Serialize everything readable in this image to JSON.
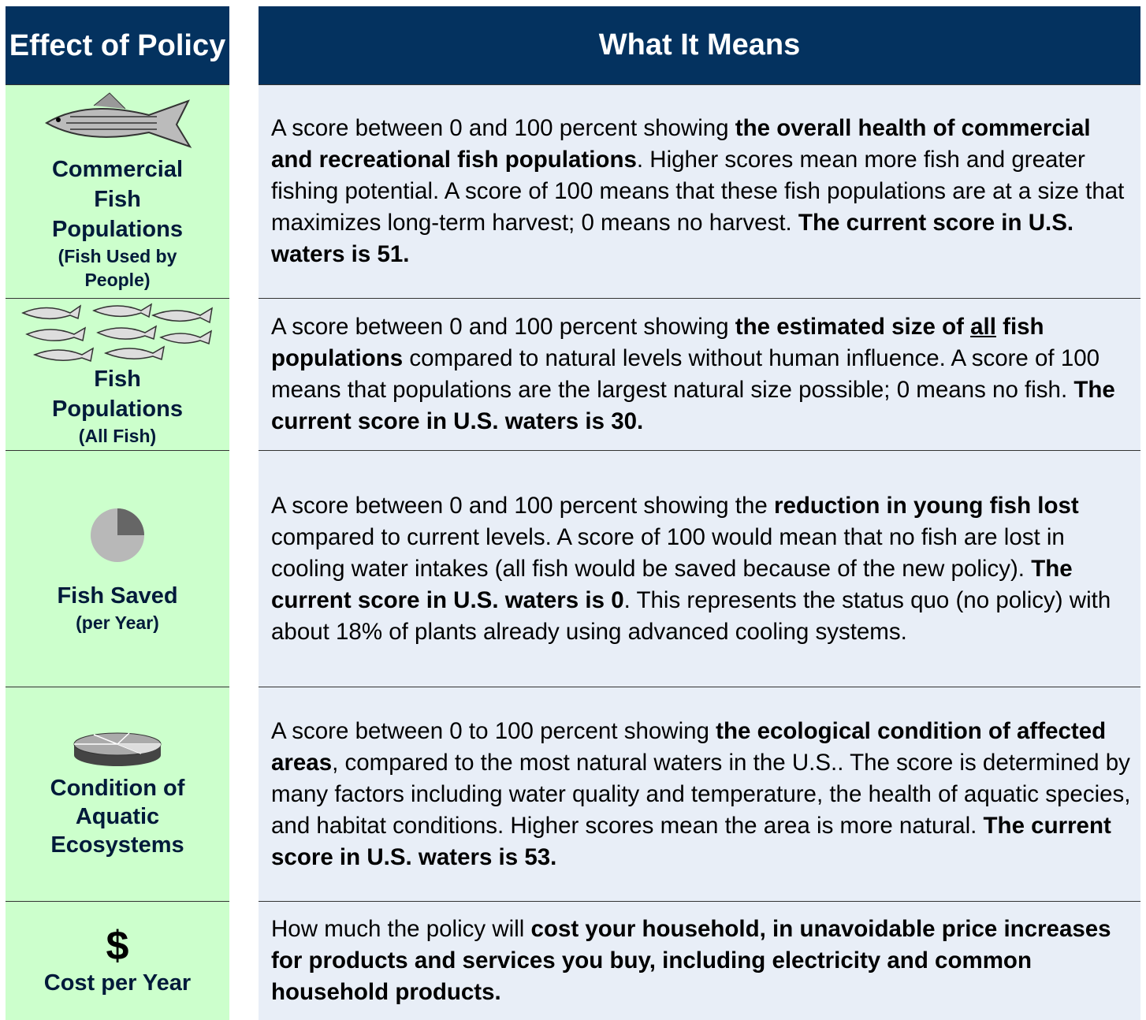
{
  "header": {
    "effect": "Effect of Policy",
    "meaning": "What It Means"
  },
  "rows": [
    {
      "label": "Commercial Fish Populations",
      "sublabel": "(Fish Used by People)",
      "description": [
        "A score between 0 and 100 percent showing ",
        "the overall health of commercial and recreational fish populations",
        ". Higher scores mean more fish and greater fishing potential. A score of 100 means that these fish populations are at a size that maximizes long-term harvest; 0 means no harvest. ",
        "The current score in U.S. waters is 51."
      ]
    },
    {
      "label": "Fish Populations",
      "sublabel": "(All Fish)",
      "description": [
        "A score between 0 and 100 percent showing ",
        "the estimated size of ",
        "all",
        " fish populations",
        " compared to natural levels without human influence. A score of 100 means that populations are the largest natural size possible; 0 means no fish. ",
        "The current score in U.S. waters is 30."
      ]
    },
    {
      "label": "Fish Saved",
      "sublabel": "(per Year)",
      "description": [
        "A score between 0 and 100 percent showing the ",
        "reduction in young fish lost",
        " compared to current levels. A score of 100 would mean that no fish are lost in cooling water intakes (all fish would be saved because of the new policy). ",
        "The current score in U.S. waters is 0",
        ". This represents the status quo (no policy) with about 18% of plants already using advanced cooling systems."
      ]
    },
    {
      "label": "Condition of Aquatic Ecosystems",
      "description": [
        "A score between 0 to 100 percent showing ",
        "the ecological condition of affected areas",
        ", compared to the most natural waters in the U.S.. The score is determined by many factors including water quality and temperature, the health of aquatic species, and habitat conditions. Higher scores mean the area is more natural. ",
        "The current score in U.S. waters is 53."
      ]
    },
    {
      "symbol": "$",
      "label": "Cost per Year",
      "description": [
        "How much the policy will ",
        "cost your household, in unavoidable price increases for products and services you buy, including electricity and common household products."
      ]
    }
  ]
}
